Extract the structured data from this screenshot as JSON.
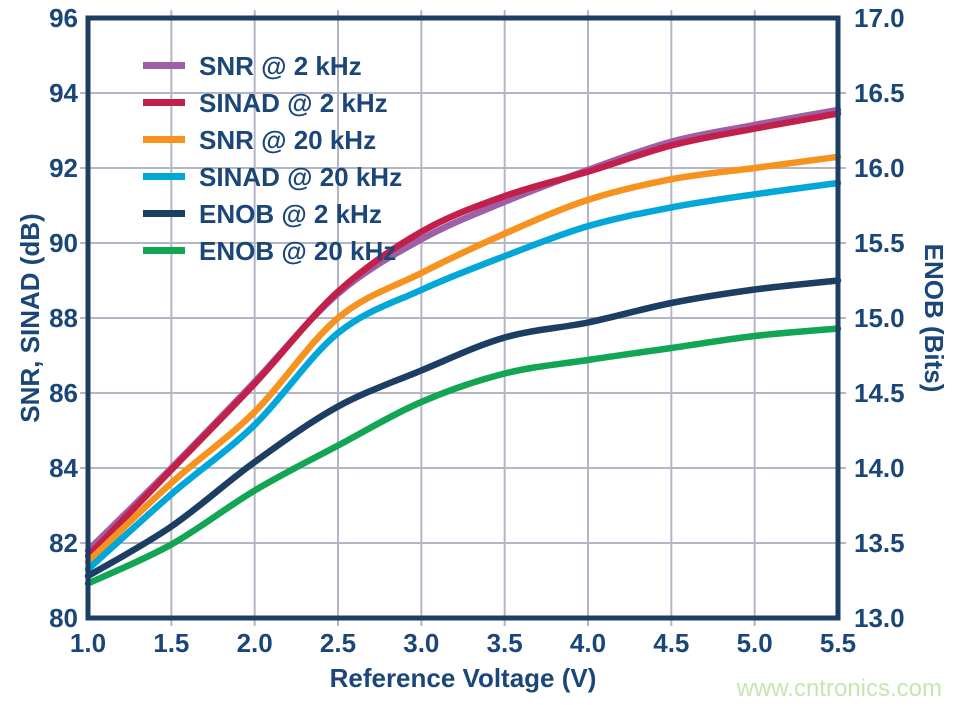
{
  "colors": {
    "text": "#1b4679",
    "frame": "#1c3e63",
    "grid": "#b4b6c6",
    "watermark": "#c4e7b0",
    "background": "#ffffff"
  },
  "axes": {
    "x": {
      "title": "Reference Voltage (V)",
      "min": 1.0,
      "max": 5.5,
      "tick_labels": [
        "1.0",
        "1.5",
        "2.0",
        "2.5",
        "3.0",
        "3.5",
        "4.0",
        "4.5",
        "5.0",
        "5.5"
      ],
      "tick_values": [
        1.0,
        1.5,
        2.0,
        2.5,
        3.0,
        3.5,
        4.0,
        4.5,
        5.0,
        5.5
      ]
    },
    "y_left": {
      "title": "SNR, SINAD (dB)",
      "min": 80,
      "max": 96,
      "tick_labels": [
        "96",
        "94",
        "92",
        "90",
        "88",
        "86",
        "84",
        "82",
        "80"
      ],
      "tick_values": [
        96,
        94,
        92,
        90,
        88,
        86,
        84,
        82,
        80
      ]
    },
    "y_right": {
      "title": "ENOB (Bits)",
      "min": 13.0,
      "max": 17.0,
      "tick_labels": [
        "17.0",
        "16.5",
        "16.0",
        "15.5",
        "15.0",
        "14.5",
        "14.0",
        "13.5",
        "13.0"
      ],
      "tick_values": [
        17.0,
        16.5,
        16.0,
        15.5,
        15.0,
        14.5,
        14.0,
        13.5,
        13.0
      ]
    }
  },
  "chart_data": {
    "type": "line",
    "grid": true,
    "legend_position": "top-left-inside",
    "x": [
      1.0,
      1.5,
      2.0,
      2.5,
      3.0,
      3.5,
      4.0,
      4.5,
      5.0,
      5.5
    ],
    "series": [
      {
        "name": "SNR @ 2 kHz",
        "axis": "left",
        "unit": "dB",
        "color": "#9d5fa5",
        "values": [
          81.8,
          84.0,
          86.3,
          88.65,
          90.1,
          91.1,
          91.95,
          92.7,
          93.15,
          93.55
        ]
      },
      {
        "name": "SINAD @ 2 kHz",
        "axis": "left",
        "unit": "dB",
        "color": "#c31f4b",
        "values": [
          81.65,
          83.95,
          86.25,
          88.7,
          90.3,
          91.25,
          91.9,
          92.6,
          93.05,
          93.45
        ]
      },
      {
        "name": "SNR @ 20 kHz",
        "axis": "left",
        "unit": "dB",
        "color": "#f6921e",
        "values": [
          81.5,
          83.6,
          85.5,
          88.0,
          89.2,
          90.25,
          91.15,
          91.7,
          92.0,
          92.3
        ]
      },
      {
        "name": "SINAD @ 20 kHz",
        "axis": "left",
        "unit": "dB",
        "color": "#00a7d8",
        "values": [
          81.3,
          83.3,
          85.15,
          87.6,
          88.75,
          89.65,
          90.45,
          90.95,
          91.3,
          91.6
        ]
      },
      {
        "name": "ENOB @ 2 kHz",
        "axis": "right",
        "unit": "Bits",
        "color": "#1c3e63",
        "values": [
          13.28,
          13.61,
          14.04,
          14.41,
          14.65,
          14.87,
          14.97,
          15.1,
          15.19,
          15.25
        ]
      },
      {
        "name": "ENOB @ 20 kHz",
        "axis": "right",
        "unit": "Bits",
        "color": "#12a553",
        "values": [
          13.23,
          13.49,
          13.85,
          14.15,
          14.44,
          14.63,
          14.72,
          14.8,
          14.88,
          14.93
        ]
      }
    ]
  },
  "watermark": "www.cntronics.com"
}
